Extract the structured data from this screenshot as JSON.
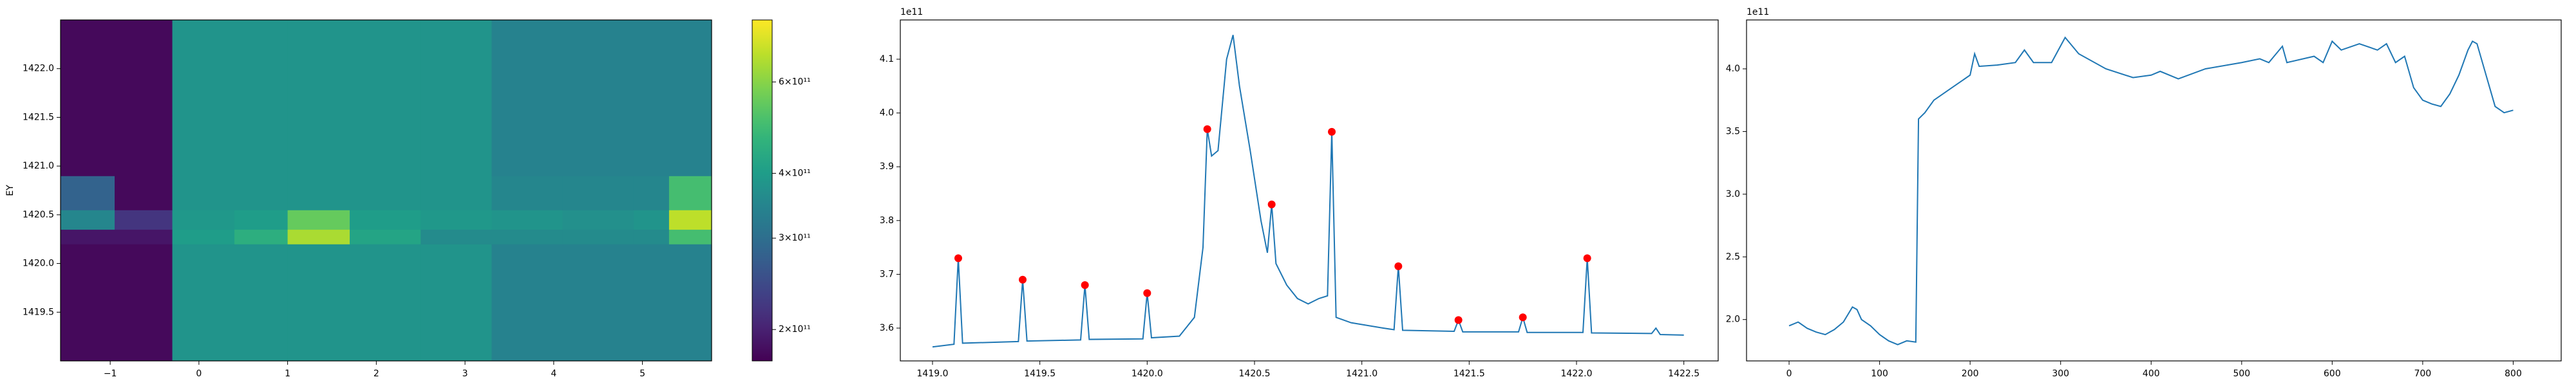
{
  "chart_data": [
    {
      "type": "heatmap",
      "ylabel": "EY",
      "xlim": [
        -1.56,
        5.78
      ],
      "ylim": [
        1419.0,
        1422.5
      ],
      "xticks": [
        {
          "value": -1,
          "label": "−1"
        },
        0,
        1,
        2,
        3,
        4,
        5
      ],
      "yticks": [
        1419.5,
        {
          "value": 1420,
          "label": "1420.0"
        },
        1420.5,
        {
          "value": 1421,
          "label": "1421.0"
        },
        1421.5,
        {
          "value": 1422,
          "label": "1422.0"
        }
      ],
      "x_edges": [
        -1.56,
        -0.95,
        -0.3,
        0.4,
        1.0,
        1.7,
        2.5,
        3.3,
        4.1,
        4.9,
        5.3,
        5.78
      ],
      "y_edges": [
        1419.0,
        1420.2,
        1420.35,
        1420.55,
        1420.9,
        1422.5
      ],
      "z": [
        [
          180000000000.0,
          180000000000.0,
          380000000000.0,
          380000000000.0,
          380000000000.0,
          380000000000.0,
          380000000000.0,
          340000000000.0,
          340000000000.0,
          340000000000.0,
          340000000000.0
        ],
        [
          190000000000.0,
          190000000000.0,
          400000000000.0,
          450000000000.0,
          650000000000.0,
          420000000000.0,
          360000000000.0,
          360000000000.0,
          360000000000.0,
          360000000000.0,
          500000000000.0
        ],
        [
          350000000000.0,
          220000000000.0,
          390000000000.0,
          400000000000.0,
          550000000000.0,
          400000000000.0,
          390000000000.0,
          380000000000.0,
          370000000000.0,
          380000000000.0,
          680000000000.0
        ],
        [
          280000000000.0,
          180000000000.0,
          380000000000.0,
          380000000000.0,
          380000000000.0,
          380000000000.0,
          380000000000.0,
          350000000000.0,
          350000000000.0,
          350000000000.0,
          500000000000.0
        ],
        [
          180000000000.0,
          180000000000.0,
          380000000000.0,
          380000000000.0,
          380000000000.0,
          380000000000.0,
          380000000000.0,
          340000000000.0,
          340000000000.0,
          340000000000.0,
          340000000000.0
        ]
      ],
      "colormap": "viridis",
      "colorbar_scale": "log",
      "clim": [
        174000000000.0,
        790000000000.0
      ],
      "colorbar_ticks": [
        {
          "value": 200000000000.0,
          "label": "2×10¹¹"
        },
        {
          "value": 300000000000.0,
          "label": "3×10¹¹"
        },
        {
          "value": 400000000000.0,
          "label": "4×10¹¹"
        },
        {
          "value": 600000000000.0,
          "label": "6×10¹¹"
        }
      ]
    },
    {
      "type": "line",
      "offset_text": "1e11",
      "xlim": [
        1418.85,
        1422.66
      ],
      "ylim": [
        3.539,
        4.173
      ],
      "xticks": [
        {
          "value": 1419,
          "label": "1419.0"
        },
        1419.5,
        {
          "value": 1420,
          "label": "1420.0"
        },
        1420.5,
        {
          "value": 1421,
          "label": "1421.0"
        },
        1421.5,
        {
          "value": 1422,
          "label": "1422.0"
        },
        1422.5
      ],
      "yticks": [
        3.6,
        3.7,
        3.8,
        3.9,
        {
          "value": 4,
          "label": "4.0"
        },
        4.1
      ],
      "x": [
        1419.0,
        1419.1,
        1419.12,
        1419.14,
        1419.4,
        1419.42,
        1419.44,
        1419.69,
        1419.71,
        1419.73,
        1419.98,
        1420.0,
        1420.02,
        1420.15,
        1420.22,
        1420.26,
        1420.28,
        1420.3,
        1420.33,
        1420.37,
        1420.4,
        1420.43,
        1420.48,
        1420.53,
        1420.56,
        1420.58,
        1420.6,
        1420.65,
        1420.7,
        1420.75,
        1420.8,
        1420.84,
        1420.86,
        1420.88,
        1420.95,
        1421.1,
        1421.15,
        1421.17,
        1421.19,
        1421.43,
        1421.45,
        1421.47,
        1421.73,
        1421.75,
        1421.77,
        1422.03,
        1422.05,
        1422.07,
        1422.35,
        1422.37,
        1422.39,
        1422.5
      ],
      "series": [
        {
          "color": "#1f77b4",
          "values": [
            3.565,
            3.57,
            3.73,
            3.572,
            3.575,
            3.69,
            3.576,
            3.578,
            3.68,
            3.579,
            3.58,
            3.665,
            3.582,
            3.585,
            3.62,
            3.75,
            3.97,
            3.92,
            3.93,
            4.1,
            4.145,
            4.05,
            3.93,
            3.8,
            3.74,
            3.83,
            3.72,
            3.68,
            3.655,
            3.645,
            3.655,
            3.66,
            3.965,
            3.62,
            3.61,
            3.6,
            3.597,
            3.715,
            3.596,
            3.594,
            3.615,
            3.593,
            3.593,
            3.62,
            3.592,
            3.592,
            3.73,
            3.591,
            3.59,
            3.6,
            3.588,
            3.587
          ]
        }
      ],
      "markers": {
        "color": "red",
        "x": [
          1419.12,
          1419.42,
          1419.71,
          1420.0,
          1420.28,
          1420.58,
          1420.86,
          1421.17,
          1421.45,
          1421.75,
          1422.05
        ],
        "values": [
          3.73,
          3.69,
          3.68,
          3.665,
          3.97,
          3.83,
          3.965,
          3.715,
          3.615,
          3.62,
          3.73
        ]
      }
    },
    {
      "type": "line",
      "offset_text": "1e11",
      "xlim": [
        -47,
        853
      ],
      "ylim": [
        1.67,
        4.39
      ],
      "xticks": [
        0,
        100,
        200,
        300,
        400,
        500,
        600,
        700,
        800
      ],
      "yticks": [
        {
          "value": 2,
          "label": "2.0"
        },
        2.5,
        {
          "value": 3,
          "label": "3.0"
        },
        3.5,
        {
          "value": 4,
          "label": "4.0"
        }
      ],
      "x": [
        0,
        10,
        20,
        30,
        40,
        50,
        60,
        70,
        75,
        80,
        90,
        100,
        110,
        120,
        130,
        140,
        143,
        150,
        160,
        180,
        200,
        205,
        210,
        230,
        250,
        260,
        270,
        290,
        305,
        320,
        350,
        380,
        400,
        410,
        430,
        460,
        500,
        520,
        530,
        545,
        550,
        580,
        590,
        600,
        610,
        630,
        650,
        660,
        670,
        680,
        690,
        700,
        710,
        720,
        730,
        740,
        750,
        755,
        760,
        770,
        780,
        790,
        800
      ],
      "series": [
        {
          "color": "#1f77b4",
          "values": [
            1.95,
            1.98,
            1.93,
            1.9,
            1.88,
            1.92,
            1.98,
            2.1,
            2.08,
            2.0,
            1.95,
            1.88,
            1.83,
            1.8,
            1.83,
            1.82,
            3.6,
            3.65,
            3.75,
            3.85,
            3.95,
            4.12,
            4.02,
            4.03,
            4.05,
            4.15,
            4.05,
            4.05,
            4.25,
            4.12,
            4.0,
            3.93,
            3.95,
            3.98,
            3.92,
            4.0,
            4.05,
            4.08,
            4.05,
            4.18,
            4.05,
            4.1,
            4.05,
            4.22,
            4.15,
            4.2,
            4.15,
            4.2,
            4.05,
            4.1,
            3.85,
            3.75,
            3.72,
            3.7,
            3.8,
            3.95,
            4.15,
            4.22,
            4.2,
            3.95,
            3.7,
            3.65,
            3.67
          ]
        }
      ]
    }
  ]
}
